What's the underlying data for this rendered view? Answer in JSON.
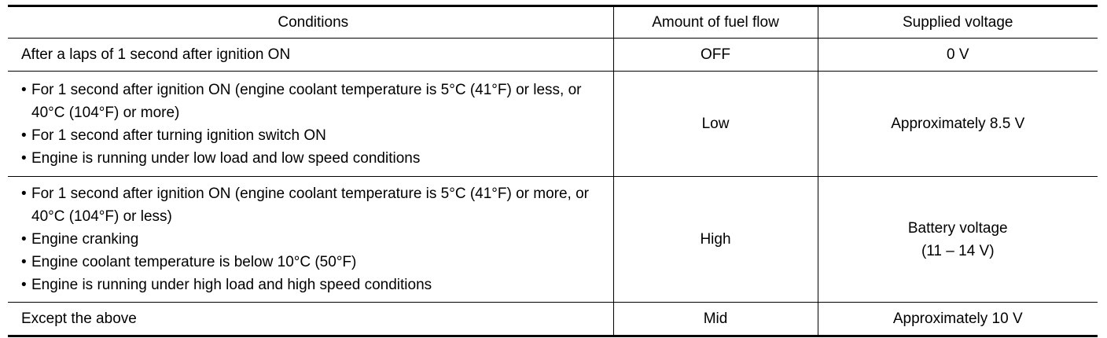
{
  "table": {
    "header": [
      "Conditions",
      "Amount of fuel flow",
      "Supplied voltage"
    ],
    "rows": [
      [
        "After a laps of 1 second after ignition ON",
        "OFF",
        "0 V"
      ],
      [
        {
          "bullets": [
            "For 1 second after ignition ON (engine coolant temperature is 5°C (41°F) or less, or 40°C (104°F) or more)",
            "For 1 second after turning ignition switch ON",
            "Engine is running under low load and low speed conditions"
          ]
        },
        "Low",
        "Approximately 8.5 V"
      ],
      [
        {
          "bullets": [
            "For 1 second after ignition ON (engine coolant temperature is 5°C (41°F) or more, or 40°C (104°F) or less)",
            "Engine cranking",
            "Engine coolant temperature is below 10°C (50°F)",
            "Engine is running under high load and high speed conditions"
          ]
        },
        "High",
        {
          "lines": [
            "Battery voltage",
            "(11 – 14 V)"
          ]
        }
      ],
      [
        "Except the above",
        "Mid",
        "Approximately 10 V"
      ]
    ]
  }
}
